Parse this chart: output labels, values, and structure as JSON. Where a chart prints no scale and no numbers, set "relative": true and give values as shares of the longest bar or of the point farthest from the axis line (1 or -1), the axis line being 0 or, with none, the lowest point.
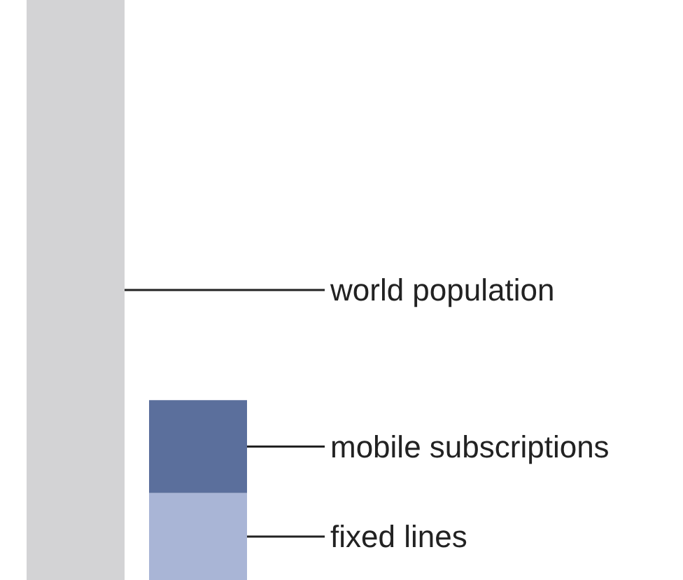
{
  "chart_data": {
    "type": "bar",
    "relative": true,
    "stacked": true,
    "legend": false,
    "categories": [
      null,
      null
    ],
    "series": [
      {
        "name": "world population",
        "color": "#d3d3d5",
        "values": [
          1,
          null
        ]
      },
      {
        "name": "fixed lines",
        "color": "#a9b5d6",
        "values": [
          null,
          0.15
        ]
      },
      {
        "name": "mobile subscriptions",
        "color": "#5b6f9c",
        "values": [
          null,
          0.16
        ]
      }
    ]
  }
}
